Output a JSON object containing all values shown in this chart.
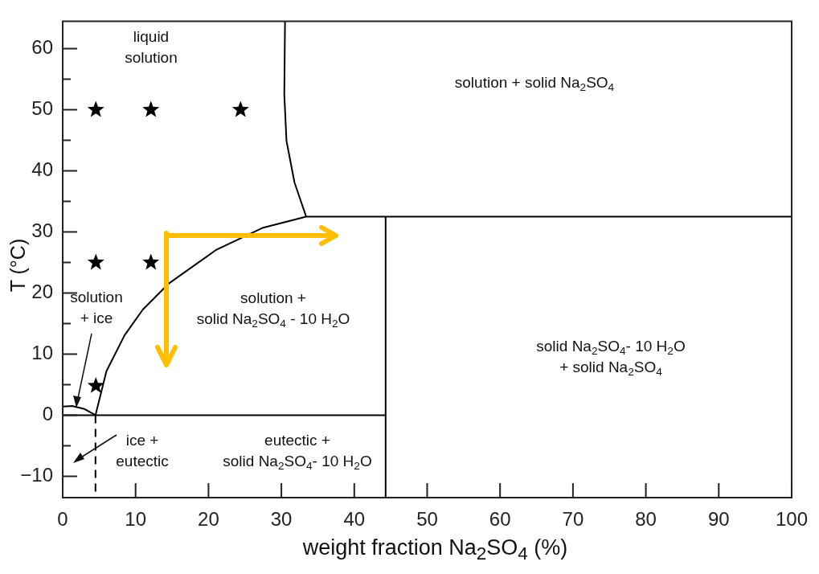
{
  "chart_data": {
    "type": "line",
    "xlabel": "weight fraction Na$_{2}$SO$_{4}$ (%)",
    "ylabel": "T (°C)",
    "xlim": [
      0,
      100
    ],
    "ylim": [
      -13.5,
      64.5
    ],
    "xticks": [
      0,
      10,
      20,
      30,
      40,
      50,
      60,
      70,
      80,
      90,
      100
    ],
    "yticks": [
      -10,
      {
        "value": -5,
        "label": null
      },
      0,
      {
        "value": 5,
        "label": null
      },
      10,
      {
        "value": 15,
        "label": null
      },
      20,
      {
        "value": 25,
        "label": null
      },
      30,
      {
        "value": 35,
        "label": null
      },
      40,
      {
        "value": 45,
        "label": null
      },
      50,
      {
        "value": 55,
        "label": null
      },
      60
    ],
    "grid": false,
    "legend": false,
    "marker": "none",
    "line_style": "solid",
    "series": [
      {
        "color": "#000000",
        "x": [
          0,
          1.3,
          3,
          4.5
        ],
        "values": [
          1.4,
          1.5,
          1.0,
          0
        ]
      },
      {
        "color": "#000000",
        "x": [
          4.5,
          6.0,
          8.5,
          11.0,
          14.6,
          21.1,
          27.5,
          33.4,
          100
        ],
        "values": [
          0,
          7.2,
          13.1,
          17.3,
          21.6,
          27.1,
          30.7,
          32.5,
          32.5
        ]
      },
      {
        "color": "#000000",
        "x": [
          33.4,
          31.8,
          30.7,
          30.4,
          30.5
        ],
        "values": [
          32.5,
          38.1,
          44.9,
          52.5,
          64.5
        ]
      },
      {
        "color": "#000000",
        "x": [
          44.3,
          44.3
        ],
        "values": [
          -13.5,
          32.5
        ]
      },
      {
        "color": "#000000",
        "x": [
          0,
          44.3
        ],
        "values": [
          0,
          0
        ]
      },
      {
        "color": "#000000",
        "x": [
          4.5,
          4.5
        ],
        "values": [
          0,
          -13.5
        ],
        "line_style": "dashed"
      },
      {
        "type": "scatter",
        "marker": "star",
        "color": "#000000",
        "x": [
          4.55,
          12.1,
          24.4,
          4.55,
          12.1,
          4.55
        ],
        "values": [
          50,
          50,
          50,
          25,
          25,
          4.8
        ]
      }
    ],
    "annotations": [
      "liquid\nsolution",
      "solution + solid Na$_{2}$SO$_{4}$",
      "solution +\nsolid Na$_{2}$SO$_{4}$ - 10 H$_{2}$O",
      "solution\n+ ice",
      "ice +\neutectic",
      "eutectic +\nsolid Na$_{2}$SO$_{4}$- 10 H$_{2}$O",
      "solid Na$_{2}$SO$_{4}$- 10 H$_{2}$O\n+ solid Na$_{2}$SO$_{4}$"
    ]
  }
}
